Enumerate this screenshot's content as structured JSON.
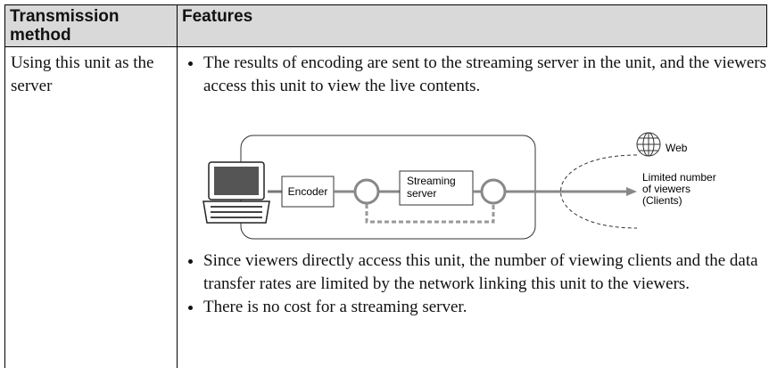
{
  "table": {
    "headers": [
      "Transmission method",
      "Features"
    ],
    "rows": [
      {
        "method": "Using this unit as the server",
        "features_before": [
          "The results of encoding are sent to the streaming server in the unit, and the viewers access this unit to view the live contents."
        ],
        "diagram": {
          "encoder": "Encoder",
          "streaming_server": [
            "Streaming",
            "server"
          ],
          "web": "Web",
          "viewers": [
            "Limited number",
            "of viewers",
            "(Clients)"
          ]
        },
        "features_after": [
          "Since viewers directly access this unit, the number of viewing clients and the data transfer rates are limited by the network linking this unit to the viewers.",
          "There is no cost for a streaming server."
        ]
      }
    ]
  }
}
